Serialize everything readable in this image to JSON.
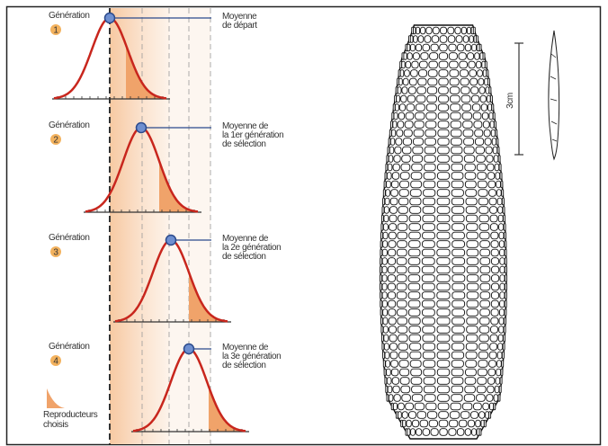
{
  "generations": [
    {
      "label": "Génération",
      "number": "1",
      "mean_label": [
        "Moyenne",
        "de départ"
      ]
    },
    {
      "label": "Génération",
      "number": "2",
      "mean_label": [
        "Moyenne de",
        "la 1er génération",
        "de sélection"
      ]
    },
    {
      "label": "Génération",
      "number": "3",
      "mean_label": [
        "Moyenne de",
        "la 2e génération",
        "de sélection"
      ]
    },
    {
      "label": "Génération",
      "number": "4",
      "mean_label": [
        "Moyenne de",
        "la 3e génération",
        "de sélection"
      ]
    }
  ],
  "legend": {
    "label": [
      "Reproducteurs",
      "choisis"
    ]
  },
  "scale": {
    "label": "3cm"
  }
}
